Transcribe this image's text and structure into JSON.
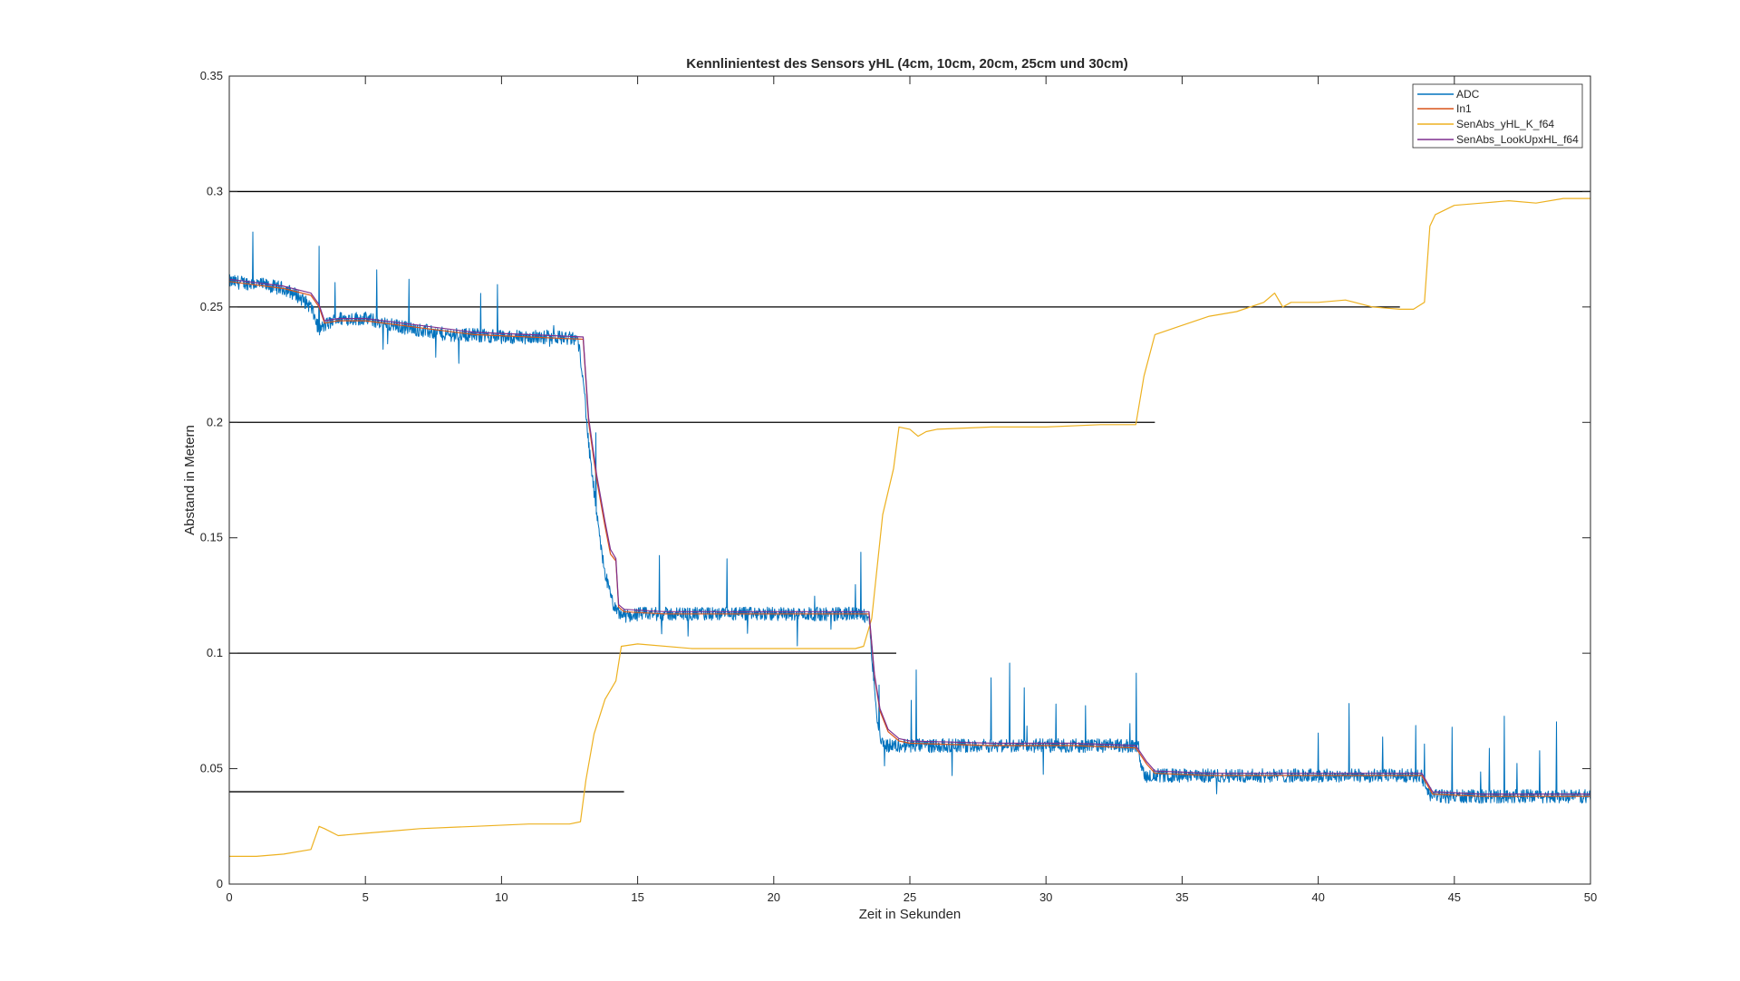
{
  "chart_data": {
    "type": "line",
    "title": "Kennlinientest des Sensors yHL (4cm, 10cm, 20cm, 25cm und 30cm)",
    "xlabel": "Zeit in Sekunden",
    "ylabel": "Abstand in Metern",
    "xlim": [
      0,
      50
    ],
    "ylim": [
      0,
      0.35
    ],
    "xticks": [
      0,
      5,
      10,
      15,
      20,
      25,
      30,
      35,
      40,
      45,
      50
    ],
    "yticks": [
      0,
      0.05,
      0.1,
      0.15,
      0.2,
      0.25,
      0.3,
      0.35
    ],
    "xtick_labels": [
      "0",
      "5",
      "10",
      "15",
      "20",
      "25",
      "30",
      "35",
      "40",
      "45",
      "50"
    ],
    "ytick_labels": [
      "0",
      "0.05",
      "0.1",
      "0.15",
      "0.2",
      "0.25",
      "0.3",
      "0.35"
    ],
    "grid": false,
    "legend_position": "top-right",
    "colors": {
      "ADC": "#0072BD",
      "In1": "#D95319",
      "SenAbs_yHL_K_f64": "#EDB120",
      "SenAbs_LookUpxHL_f64": "#7E2F8E",
      "reference": "#000000"
    },
    "series": [
      {
        "name": "ADC",
        "noisy": true,
        "x": [
          0,
          1,
          2,
          2.5,
          3,
          3.3,
          3.5,
          4,
          5,
          6,
          7,
          8,
          9,
          10,
          11,
          12,
          12.8,
          13.0,
          13.2,
          13.4,
          13.6,
          13.8,
          14.0,
          14.2,
          14.6,
          15,
          17,
          19,
          21,
          23,
          23.5,
          23.6,
          23.7,
          23.8,
          23.9,
          24.0,
          24.2,
          24.5,
          25,
          27,
          29,
          31,
          33,
          33.4,
          33.5,
          33.7,
          34,
          36,
          38,
          40,
          42,
          43.8,
          43.9,
          44.0,
          44.5,
          46,
          48,
          50
        ],
        "y": [
          0.261,
          0.26,
          0.258,
          0.255,
          0.25,
          0.24,
          0.242,
          0.245,
          0.245,
          0.242,
          0.24,
          0.238,
          0.238,
          0.237,
          0.237,
          0.237,
          0.236,
          0.22,
          0.19,
          0.17,
          0.15,
          0.135,
          0.125,
          0.118,
          0.116,
          0.117,
          0.117,
          0.117,
          0.117,
          0.117,
          0.116,
          0.1,
          0.085,
          0.072,
          0.065,
          0.061,
          0.06,
          0.06,
          0.06,
          0.06,
          0.06,
          0.06,
          0.06,
          0.059,
          0.05,
          0.047,
          0.047,
          0.047,
          0.047,
          0.047,
          0.047,
          0.047,
          0.042,
          0.039,
          0.038,
          0.038,
          0.038,
          0.038
        ]
      },
      {
        "name": "In1",
        "x": [
          0,
          2,
          3,
          3.3,
          3.5,
          4,
          5,
          7,
          9,
          11,
          13.0,
          13.2,
          13.5,
          13.8,
          14.0,
          14.2,
          14.3,
          14.5,
          16,
          20,
          23.5,
          23.7,
          23.9,
          24.2,
          24.6,
          25,
          28,
          31,
          33.3,
          33.7,
          34.0,
          36,
          40,
          43.8,
          44.2,
          46,
          50
        ],
        "y": [
          0.261,
          0.258,
          0.255,
          0.25,
          0.243,
          0.244,
          0.244,
          0.241,
          0.238,
          0.237,
          0.236,
          0.2,
          0.175,
          0.155,
          0.143,
          0.14,
          0.12,
          0.118,
          0.117,
          0.117,
          0.117,
          0.09,
          0.075,
          0.066,
          0.062,
          0.061,
          0.06,
          0.06,
          0.059,
          0.052,
          0.048,
          0.047,
          0.047,
          0.047,
          0.039,
          0.038,
          0.038
        ]
      },
      {
        "name": "SenAbs_yHL_K_f64",
        "x": [
          0,
          1,
          2,
          3,
          3.3,
          3.5,
          4,
          5,
          6,
          7,
          9,
          11,
          12.5,
          12.9,
          13.1,
          13.4,
          13.8,
          14.2,
          14.4,
          15,
          17,
          20,
          23.0,
          23.3,
          23.6,
          24.0,
          24.4,
          24.6,
          25,
          25.3,
          25.6,
          26,
          28,
          30,
          32,
          33.3,
          33.6,
          34,
          35,
          36,
          37,
          38,
          38.4,
          38.7,
          39,
          40,
          41,
          42,
          43.0,
          43.5,
          43.9,
          44.1,
          44.3,
          45,
          46,
          47,
          48,
          49,
          50
        ],
        "y": [
          0.012,
          0.012,
          0.013,
          0.015,
          0.025,
          0.024,
          0.021,
          0.022,
          0.023,
          0.024,
          0.025,
          0.026,
          0.026,
          0.027,
          0.045,
          0.065,
          0.08,
          0.088,
          0.103,
          0.104,
          0.102,
          0.102,
          0.102,
          0.103,
          0.115,
          0.16,
          0.18,
          0.198,
          0.197,
          0.194,
          0.196,
          0.197,
          0.198,
          0.198,
          0.199,
          0.199,
          0.22,
          0.238,
          0.242,
          0.246,
          0.248,
          0.252,
          0.256,
          0.25,
          0.252,
          0.252,
          0.253,
          0.25,
          0.249,
          0.249,
          0.252,
          0.285,
          0.29,
          0.294,
          0.295,
          0.296,
          0.295,
          0.297,
          0.297
        ]
      },
      {
        "name": "SenAbs_LookUpxHL_f64",
        "x": [
          0,
          2,
          3,
          3.3,
          3.5,
          4,
          5,
          7,
          9,
          11,
          13.0,
          13.2,
          13.5,
          13.8,
          14.0,
          14.2,
          14.3,
          14.5,
          16,
          20,
          23.5,
          23.7,
          23.9,
          24.2,
          24.6,
          25,
          28,
          31,
          33.3,
          33.7,
          34.0,
          36,
          40,
          43.8,
          44.2,
          46,
          50
        ],
        "y": [
          0.262,
          0.259,
          0.256,
          0.251,
          0.244,
          0.245,
          0.245,
          0.242,
          0.239,
          0.238,
          0.237,
          0.202,
          0.177,
          0.157,
          0.145,
          0.141,
          0.121,
          0.119,
          0.118,
          0.118,
          0.118,
          0.091,
          0.076,
          0.067,
          0.063,
          0.062,
          0.061,
          0.061,
          0.06,
          0.053,
          0.049,
          0.048,
          0.048,
          0.048,
          0.04,
          0.039,
          0.039
        ]
      }
    ],
    "reference_lines": [
      {
        "y": 0.04,
        "x": [
          0,
          14.5
        ]
      },
      {
        "y": 0.1,
        "x": [
          0,
          24.5
        ]
      },
      {
        "y": 0.2,
        "x": [
          0,
          34
        ]
      },
      {
        "y": 0.25,
        "x": [
          0,
          43
        ]
      },
      {
        "y": 0.3,
        "x": [
          0,
          50
        ]
      }
    ]
  }
}
